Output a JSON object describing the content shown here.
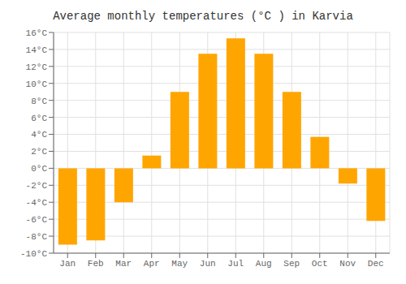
{
  "chart_data": {
    "type": "bar",
    "title": "Average monthly temperatures (°C ) in Karvia",
    "categories": [
      "Jan",
      "Feb",
      "Mar",
      "Apr",
      "May",
      "Jun",
      "Jul",
      "Aug",
      "Sep",
      "Oct",
      "Nov",
      "Dec"
    ],
    "values": [
      -9.0,
      -8.5,
      -4.0,
      1.5,
      9.0,
      13.5,
      15.3,
      13.5,
      9.0,
      3.7,
      -1.8,
      -6.2
    ],
    "color": "#FFA500",
    "ylim": [
      -10,
      16
    ],
    "yticks": [
      {
        "value": -10,
        "label": "-10°C"
      },
      {
        "value": -8,
        "label": "-8°C"
      },
      {
        "value": -6,
        "label": "-6°C"
      },
      {
        "value": -4,
        "label": "-4°C"
      },
      {
        "value": -2,
        "label": "-2°C"
      },
      {
        "value": 0,
        "label": "0°C"
      },
      {
        "value": 2,
        "label": "2°C"
      },
      {
        "value": 4,
        "label": "4°C"
      },
      {
        "value": 6,
        "label": "6°C"
      },
      {
        "value": 8,
        "label": "8°C"
      },
      {
        "value": 10,
        "label": "10°C"
      },
      {
        "value": 12,
        "label": "12°C"
      },
      {
        "value": 14,
        "label": "14°C"
      },
      {
        "value": 16,
        "label": "16°C"
      }
    ],
    "grid": true
  }
}
